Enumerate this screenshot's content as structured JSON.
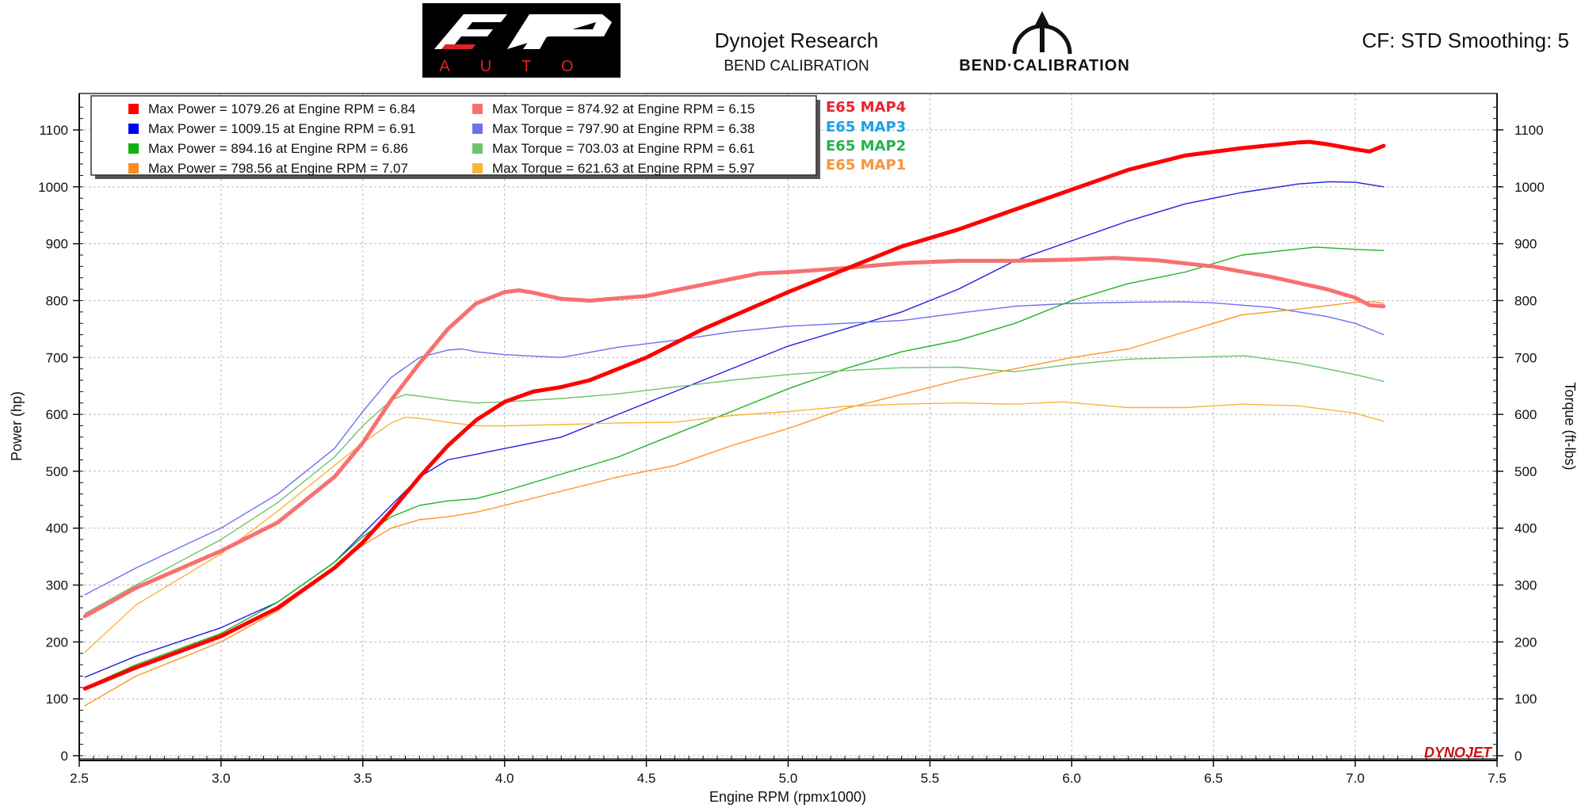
{
  "header": {
    "company": "Dynojet Research",
    "subtitle": "BEND CALIBRATION",
    "settings": "CF: STD Smoothing: 5",
    "logo_left_text": "AUTO",
    "logo_right_text": "BEND·CALIBRATION",
    "watermark": "DYNOJET"
  },
  "colors": {
    "map4_power": "#ff0000",
    "map4_torque": "#f87070",
    "map3_power": "#2020e0",
    "map3_torque": "#6f6ff0",
    "map2_power": "#21b221",
    "map2_torque": "#6ec46e",
    "map1_power": "#ff9422",
    "map1_torque": "#fbb33a",
    "label_map4": "#e8232f",
    "label_map3": "#1ba1e2",
    "label_map2": "#22b24c",
    "label_map1": "#f7943d"
  },
  "chart_data": {
    "type": "line",
    "xlabel": "Engine RPM (rpmx1000)",
    "ylabel": "Power (hp)",
    "ylabel_right": "Torque (ft-lbs)",
    "xlim": [
      2.5,
      7.5
    ],
    "ylim": [
      0,
      1150
    ],
    "x_ticks": [
      "2.5",
      "3.0",
      "3.5",
      "4.0",
      "4.5",
      "5.0",
      "5.5",
      "6.0",
      "6.5",
      "7.0",
      "7.5"
    ],
    "y_ticks": [
      "0",
      "100",
      "200",
      "300",
      "400",
      "500",
      "600",
      "700",
      "800",
      "900",
      "1000",
      "1100"
    ],
    "grid": true,
    "legend": [
      {
        "text": "Max Power = 1079.26 at Engine RPM = 6.84",
        "color": "#ff0000"
      },
      {
        "text": "Max Power = 1009.15 at Engine RPM = 6.91",
        "color": "#0000ee"
      },
      {
        "text": "Max Power = 894.16 at Engine RPM = 6.86",
        "color": "#10b010"
      },
      {
        "text": "Max Power = 798.56 at Engine RPM = 7.07",
        "color": "#ff8c1a"
      },
      {
        "text": "Max Torque = 874.92 at Engine RPM = 6.15",
        "color": "#f87070"
      },
      {
        "text": "Max Torque = 797.90 at Engine RPM = 6.38",
        "color": "#6f6ff0"
      },
      {
        "text": "Max Torque = 703.03 at Engine RPM = 6.61",
        "color": "#6ec46e"
      },
      {
        "text": "Max Torque = 621.63 at Engine RPM = 5.97",
        "color": "#fbb33a"
      }
    ],
    "map_labels": [
      "E65 MAP4",
      "E65 MAP3",
      "E65 MAP2",
      "E65 MAP1"
    ],
    "series": [
      {
        "name": "E65 MAP4 Power",
        "color": "#ff0000",
        "width": 5,
        "x": [
          2.52,
          2.7,
          3.0,
          3.2,
          3.4,
          3.5,
          3.6,
          3.7,
          3.8,
          3.9,
          4.0,
          4.1,
          4.2,
          4.3,
          4.5,
          4.7,
          5.0,
          5.2,
          5.4,
          5.6,
          5.8,
          6.0,
          6.2,
          6.4,
          6.6,
          6.8,
          6.84,
          6.9,
          7.0,
          7.05,
          7.1
        ],
        "y": [
          118,
          155,
          210,
          260,
          330,
          375,
          430,
          490,
          545,
          590,
          622,
          640,
          648,
          660,
          700,
          750,
          815,
          855,
          895,
          925,
          960,
          995,
          1030,
          1055,
          1068,
          1078,
          1079,
          1075,
          1066,
          1062,
          1072
        ]
      },
      {
        "name": "E65 MAP4 Torque",
        "color": "#f87070",
        "width": 5,
        "x": [
          2.52,
          2.7,
          3.0,
          3.2,
          3.4,
          3.5,
          3.6,
          3.7,
          3.8,
          3.9,
          4.0,
          4.05,
          4.1,
          4.2,
          4.3,
          4.5,
          4.7,
          4.9,
          5.0,
          5.2,
          5.4,
          5.6,
          5.8,
          6.0,
          6.15,
          6.3,
          6.5,
          6.7,
          6.9,
          7.0,
          7.05,
          7.1
        ],
        "y": [
          245,
          295,
          360,
          410,
          490,
          550,
          625,
          690,
          750,
          795,
          815,
          818,
          814,
          803,
          800,
          808,
          828,
          848,
          850,
          857,
          866,
          870,
          870,
          872,
          875,
          871,
          860,
          842,
          820,
          805,
          792,
          790
        ]
      },
      {
        "name": "E65 MAP3 Power",
        "color": "#2020e0",
        "width": 1.4,
        "x": [
          2.52,
          2.7,
          3.0,
          3.2,
          3.4,
          3.5,
          3.6,
          3.7,
          3.8,
          3.9,
          4.0,
          4.2,
          4.4,
          4.6,
          4.8,
          5.0,
          5.2,
          5.4,
          5.6,
          5.8,
          6.0,
          6.2,
          6.4,
          6.6,
          6.8,
          6.91,
          7.0,
          7.1
        ],
        "y": [
          138,
          175,
          225,
          270,
          340,
          390,
          440,
          490,
          520,
          530,
          540,
          560,
          600,
          640,
          680,
          720,
          750,
          780,
          820,
          870,
          905,
          940,
          970,
          990,
          1005,
          1009,
          1008,
          1000
        ]
      },
      {
        "name": "E65 MAP3 Torque",
        "color": "#6f6ff0",
        "width": 1.4,
        "x": [
          2.52,
          2.7,
          3.0,
          3.2,
          3.4,
          3.5,
          3.6,
          3.7,
          3.8,
          3.85,
          3.9,
          4.0,
          4.2,
          4.4,
          4.6,
          4.8,
          5.0,
          5.2,
          5.4,
          5.6,
          5.8,
          6.0,
          6.2,
          6.38,
          6.5,
          6.7,
          6.9,
          7.0,
          7.1
        ],
        "y": [
          283,
          330,
          400,
          460,
          540,
          605,
          665,
          700,
          713,
          715,
          710,
          705,
          700,
          718,
          730,
          745,
          755,
          760,
          765,
          778,
          790,
          795,
          797,
          798,
          796,
          788,
          772,
          760,
          740
        ]
      },
      {
        "name": "E65 MAP2 Power",
        "color": "#21b221",
        "width": 1.4,
        "x": [
          2.52,
          2.7,
          3.0,
          3.2,
          3.4,
          3.5,
          3.6,
          3.7,
          3.8,
          3.9,
          4.0,
          4.2,
          4.4,
          4.6,
          4.8,
          5.0,
          5.2,
          5.4,
          5.6,
          5.8,
          6.0,
          6.2,
          6.4,
          6.6,
          6.86,
          7.0,
          7.1
        ],
        "y": [
          120,
          160,
          215,
          270,
          340,
          385,
          420,
          440,
          448,
          452,
          465,
          495,
          525,
          565,
          605,
          645,
          680,
          710,
          730,
          760,
          800,
          830,
          850,
          880,
          894,
          890,
          888
        ]
      },
      {
        "name": "E65 MAP2 Torque",
        "color": "#6ec46e",
        "width": 1.4,
        "x": [
          2.52,
          2.7,
          3.0,
          3.2,
          3.4,
          3.5,
          3.6,
          3.65,
          3.7,
          3.8,
          3.9,
          4.0,
          4.2,
          4.4,
          4.6,
          4.8,
          5.0,
          5.2,
          5.4,
          5.6,
          5.8,
          6.0,
          6.2,
          6.4,
          6.61,
          6.8,
          7.0,
          7.1
        ],
        "y": [
          250,
          300,
          380,
          445,
          525,
          580,
          625,
          635,
          632,
          625,
          620,
          622,
          628,
          636,
          648,
          660,
          670,
          677,
          682,
          683,
          675,
          688,
          697,
          700,
          703,
          690,
          670,
          658
        ]
      },
      {
        "name": "E65 MAP1 Power",
        "color": "#ff9422",
        "width": 1.4,
        "x": [
          2.52,
          2.7,
          3.0,
          3.2,
          3.4,
          3.5,
          3.6,
          3.7,
          3.8,
          3.9,
          4.0,
          4.2,
          4.4,
          4.6,
          4.8,
          5.0,
          5.2,
          5.4,
          5.6,
          5.8,
          6.0,
          6.2,
          6.4,
          6.6,
          6.8,
          7.0,
          7.07,
          7.1
        ],
        "y": [
          88,
          140,
          200,
          255,
          330,
          370,
          400,
          415,
          420,
          428,
          440,
          465,
          490,
          510,
          545,
          575,
          610,
          635,
          660,
          680,
          700,
          715,
          745,
          775,
          785,
          797,
          798,
          795
        ]
      },
      {
        "name": "E65 MAP1 Torque",
        "color": "#fbb33a",
        "width": 1.4,
        "x": [
          2.52,
          2.7,
          3.0,
          3.2,
          3.4,
          3.5,
          3.6,
          3.65,
          3.7,
          3.8,
          3.9,
          4.0,
          4.2,
          4.4,
          4.6,
          4.8,
          5.0,
          5.2,
          5.4,
          5.6,
          5.8,
          5.97,
          6.2,
          6.4,
          6.6,
          6.8,
          7.0,
          7.1
        ],
        "y": [
          182,
          265,
          355,
          430,
          510,
          550,
          585,
          595,
          593,
          586,
          580,
          580,
          582,
          585,
          586,
          598,
          605,
          614,
          618,
          620,
          618,
          622,
          612,
          612,
          618,
          615,
          602,
          588
        ]
      }
    ]
  }
}
